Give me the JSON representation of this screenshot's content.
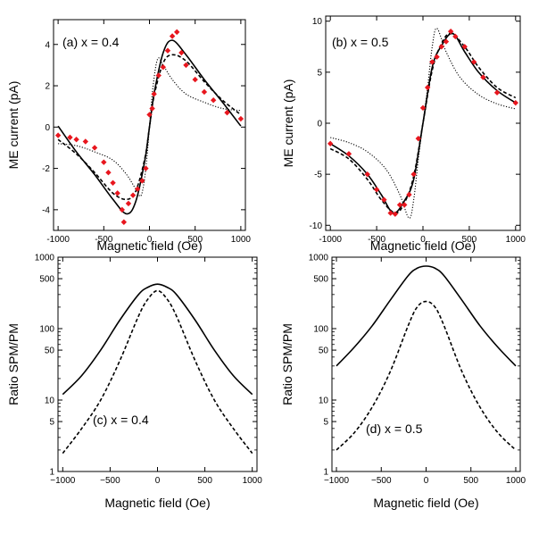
{
  "figure": {
    "background": "#ffffff",
    "line_color": "#000000",
    "marker_color": "#e8161e"
  },
  "chart_data": [
    {
      "id": "a",
      "type": "line",
      "title": "(a) x = 0.4",
      "xlabel": "Magnetic field (Oe)",
      "ylabel": "ME current (pA)",
      "xlim": [
        -1050,
        1050
      ],
      "ylim": [
        -5,
        5.2
      ],
      "yscale": "linear",
      "xticks": [
        -1000,
        -500,
        0,
        500,
        1000
      ],
      "xtick_labels": [
        "-1000",
        "-500",
        "0",
        "500",
        "1000"
      ],
      "yticks": [
        -4,
        -2,
        0,
        2,
        4
      ],
      "ytick_labels": [
        "-4",
        "-2",
        "0",
        "2",
        "4"
      ],
      "series": [
        {
          "name": "solid",
          "style": "solid",
          "points": [
            [
              -1000,
              0.05
            ],
            [
              -800,
              -1.2
            ],
            [
              -600,
              -2.3
            ],
            [
              -400,
              -3.5
            ],
            [
              -250,
              -4.2
            ],
            [
              -150,
              -3.6
            ],
            [
              -50,
              -1.6
            ],
            [
              0,
              0
            ],
            [
              50,
              1.6
            ],
            [
              150,
              3.6
            ],
            [
              250,
              4.2
            ],
            [
              400,
              3.5
            ],
            [
              600,
              2.3
            ],
            [
              800,
              1.2
            ],
            [
              1000,
              0.05
            ]
          ]
        },
        {
          "name": "dashed",
          "style": "dashed",
          "points": [
            [
              -1000,
              -0.6
            ],
            [
              -800,
              -1.3
            ],
            [
              -600,
              -2.2
            ],
            [
              -400,
              -3.2
            ],
            [
              -250,
              -3.5
            ],
            [
              -150,
              -3.1
            ],
            [
              -50,
              -1.5
            ],
            [
              0,
              0
            ],
            [
              50,
              1.5
            ],
            [
              150,
              3.1
            ],
            [
              250,
              3.5
            ],
            [
              400,
              3.2
            ],
            [
              600,
              2.2
            ],
            [
              800,
              1.3
            ],
            [
              1000,
              0.6
            ]
          ]
        },
        {
          "name": "dotted",
          "style": "dotted",
          "points": [
            [
              -1000,
              -0.8
            ],
            [
              -800,
              -0.9
            ],
            [
              -600,
              -1.2
            ],
            [
              -400,
              -1.6
            ],
            [
              -250,
              -2.3
            ],
            [
              -150,
              -3.0
            ],
            [
              -90,
              -3.3
            ],
            [
              -40,
              -2.0
            ],
            [
              0,
              0
            ],
            [
              40,
              2.0
            ],
            [
              90,
              3.3
            ],
            [
              150,
              3.0
            ],
            [
              250,
              2.3
            ],
            [
              400,
              1.6
            ],
            [
              600,
              1.2
            ],
            [
              800,
              0.9
            ],
            [
              1000,
              0.8
            ]
          ]
        }
      ],
      "markers": {
        "name": "measured",
        "points": [
          [
            -1000,
            -0.4
          ],
          [
            -870,
            -0.5
          ],
          [
            -800,
            -0.6
          ],
          [
            -700,
            -0.7
          ],
          [
            -600,
            -1.0
          ],
          [
            -500,
            -1.7
          ],
          [
            -450,
            -2.2
          ],
          [
            -400,
            -2.7
          ],
          [
            -350,
            -3.2
          ],
          [
            -300,
            -4.0
          ],
          [
            -280,
            -4.6
          ],
          [
            -230,
            -3.7
          ],
          [
            -180,
            -3.3
          ],
          [
            -130,
            -3.0
          ],
          [
            -80,
            -2.6
          ],
          [
            -40,
            -2.0
          ],
          [
            0,
            0.6
          ],
          [
            30,
            0.9
          ],
          [
            50,
            1.6
          ],
          [
            100,
            2.5
          ],
          [
            150,
            2.9
          ],
          [
            200,
            3.7
          ],
          [
            250,
            4.4
          ],
          [
            300,
            4.6
          ],
          [
            350,
            3.6
          ],
          [
            400,
            3.0
          ],
          [
            500,
            2.3
          ],
          [
            600,
            1.7
          ],
          [
            700,
            1.3
          ],
          [
            850,
            0.7
          ],
          [
            1000,
            0.4
          ]
        ]
      }
    },
    {
      "id": "b",
      "type": "line",
      "title": "(b) x = 0.5",
      "xlabel": "Magnetic field (Oe)",
      "ylabel": "ME current (pA)",
      "xlim": [
        -1050,
        1050
      ],
      "ylim": [
        -10.5,
        10.5
      ],
      "yscale": "linear",
      "xticks": [
        -1000,
        -500,
        0,
        500,
        1000
      ],
      "xtick_labels": [
        "-1000",
        "-500",
        "0",
        "500",
        "1000"
      ],
      "yticks": [
        -10,
        -5,
        0,
        5,
        10
      ],
      "ytick_labels": [
        "-10",
        "-5",
        "0",
        "5",
        "10"
      ],
      "series": [
        {
          "name": "solid",
          "style": "solid",
          "points": [
            [
              -1000,
              -2.0
            ],
            [
              -800,
              -3.2
            ],
            [
              -600,
              -5.0
            ],
            [
              -450,
              -7.0
            ],
            [
              -320,
              -8.8
            ],
            [
              -200,
              -7.6
            ],
            [
              -100,
              -5.5
            ],
            [
              0,
              0
            ],
            [
              100,
              5.5
            ],
            [
              200,
              7.6
            ],
            [
              320,
              8.8
            ],
            [
              450,
              7.0
            ],
            [
              600,
              5.0
            ],
            [
              800,
              3.2
            ],
            [
              1000,
              2.0
            ]
          ]
        },
        {
          "name": "dashed",
          "style": "dashed",
          "points": [
            [
              -1000,
              -2.5
            ],
            [
              -800,
              -3.5
            ],
            [
              -600,
              -5.5
            ],
            [
              -450,
              -7.5
            ],
            [
              -300,
              -8.8
            ],
            [
              -200,
              -7.8
            ],
            [
              -100,
              -5.2
            ],
            [
              0,
              0
            ],
            [
              100,
              5.2
            ],
            [
              200,
              7.8
            ],
            [
              300,
              8.8
            ],
            [
              450,
              7.5
            ],
            [
              600,
              5.5
            ],
            [
              800,
              3.5
            ],
            [
              1000,
              2.5
            ]
          ]
        },
        {
          "name": "dotted",
          "style": "dotted",
          "points": [
            [
              -1000,
              -1.4
            ],
            [
              -800,
              -1.9
            ],
            [
              -600,
              -2.8
            ],
            [
              -400,
              -4.5
            ],
            [
              -250,
              -7.0
            ],
            [
              -150,
              -9.3
            ],
            [
              -100,
              -7.5
            ],
            [
              -50,
              -3.5
            ],
            [
              0,
              0
            ],
            [
              50,
              3.5
            ],
            [
              100,
              7.5
            ],
            [
              150,
              9.3
            ],
            [
              250,
              7.0
            ],
            [
              400,
              4.5
            ],
            [
              600,
              2.8
            ],
            [
              800,
              1.9
            ],
            [
              1000,
              1.4
            ]
          ]
        }
      ],
      "markers": {
        "name": "measured",
        "points": [
          [
            -1000,
            -2.0
          ],
          [
            -800,
            -3.0
          ],
          [
            -600,
            -5.0
          ],
          [
            -500,
            -6.5
          ],
          [
            -420,
            -7.5
          ],
          [
            -350,
            -8.8
          ],
          [
            -300,
            -8.9
          ],
          [
            -250,
            -8.0
          ],
          [
            -200,
            -8.0
          ],
          [
            -150,
            -7.0
          ],
          [
            -100,
            -5.0
          ],
          [
            -50,
            -1.5
          ],
          [
            0,
            1.5
          ],
          [
            50,
            3.5
          ],
          [
            100,
            6.0
          ],
          [
            150,
            6.5
          ],
          [
            200,
            7.5
          ],
          [
            250,
            8.0
          ],
          [
            300,
            9.0
          ],
          [
            350,
            8.5
          ],
          [
            450,
            7.5
          ],
          [
            550,
            6.0
          ],
          [
            650,
            4.5
          ],
          [
            800,
            3.0
          ],
          [
            1000,
            2.0
          ]
        ]
      }
    },
    {
      "id": "c",
      "type": "line",
      "title": "(c) x = 0.4",
      "xlabel": "Magnetic field (Oe)",
      "ylabel": "Ratio SPM/PM",
      "xlim": [
        -1050,
        1050
      ],
      "ylim": [
        1,
        1000
      ],
      "yscale": "log",
      "xticks": [
        -1000,
        -500,
        0,
        500,
        1000
      ],
      "xtick_labels": [
        "−1000",
        "−500",
        "0",
        "500",
        "1000"
      ],
      "yticks": [
        1,
        5,
        10,
        50,
        100,
        500,
        1000
      ],
      "ytick_labels": [
        "1",
        "5",
        "10",
        "50",
        "100",
        "500",
        "1000"
      ],
      "series": [
        {
          "name": "solid",
          "style": "solid",
          "points": [
            [
              -1000,
              12
            ],
            [
              -800,
              22
            ],
            [
              -600,
              50
            ],
            [
              -400,
              130
            ],
            [
              -200,
              300
            ],
            [
              -100,
              380
            ],
            [
              0,
              420
            ],
            [
              100,
              380
            ],
            [
              200,
              300
            ],
            [
              400,
              130
            ],
            [
              600,
              50
            ],
            [
              800,
              22
            ],
            [
              1000,
              12
            ]
          ]
        },
        {
          "name": "dashed",
          "style": "dashed",
          "points": [
            [
              -1000,
              1.8
            ],
            [
              -800,
              4
            ],
            [
              -600,
              10
            ],
            [
              -400,
              35
            ],
            [
              -200,
              150
            ],
            [
              -100,
              260
            ],
            [
              0,
              340
            ],
            [
              100,
              260
            ],
            [
              200,
              150
            ],
            [
              400,
              35
            ],
            [
              600,
              10
            ],
            [
              800,
              4
            ],
            [
              1000,
              1.8
            ]
          ]
        }
      ]
    },
    {
      "id": "d",
      "type": "line",
      "title": "(d) x = 0.5",
      "xlabel": "Magnetic field (Oe)",
      "ylabel": "Ratio SPM/PM",
      "xlim": [
        -1050,
        1050
      ],
      "ylim": [
        1,
        1000
      ],
      "yscale": "log",
      "xticks": [
        -1000,
        -500,
        0,
        500,
        1000
      ],
      "xtick_labels": [
        "−1000",
        "−500",
        "0",
        "500",
        "1000"
      ],
      "yticks": [
        1,
        5,
        10,
        50,
        100,
        500,
        1000
      ],
      "ytick_labels": [
        "1",
        "5",
        "10",
        "50",
        "100",
        "500",
        "1000"
      ],
      "series": [
        {
          "name": "solid",
          "style": "solid",
          "points": [
            [
              -1000,
              30
            ],
            [
              -800,
              55
            ],
            [
              -600,
              110
            ],
            [
              -400,
              250
            ],
            [
              -200,
              550
            ],
            [
              -100,
              700
            ],
            [
              0,
              750
            ],
            [
              100,
              700
            ],
            [
              200,
              550
            ],
            [
              400,
              250
            ],
            [
              600,
              110
            ],
            [
              800,
              55
            ],
            [
              1000,
              30
            ]
          ]
        },
        {
          "name": "dashed",
          "style": "dashed",
          "points": [
            [
              -1000,
              2
            ],
            [
              -800,
              3.5
            ],
            [
              -600,
              8
            ],
            [
              -400,
              25
            ],
            [
              -200,
              110
            ],
            [
              -100,
              200
            ],
            [
              0,
              240
            ],
            [
              100,
              200
            ],
            [
              200,
              110
            ],
            [
              400,
              25
            ],
            [
              600,
              8
            ],
            [
              800,
              3.5
            ],
            [
              1000,
              2
            ]
          ]
        }
      ]
    }
  ]
}
